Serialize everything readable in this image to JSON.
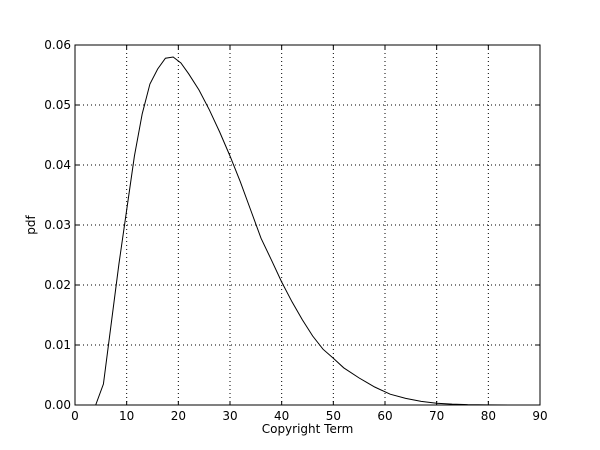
{
  "chart_data": {
    "type": "line",
    "title": "",
    "xlabel": "Copyright Term",
    "ylabel": "pdf",
    "xlim": [
      0,
      90
    ],
    "ylim": [
      0,
      0.06
    ],
    "grid": true,
    "xticks": [
      "0",
      "10",
      "20",
      "30",
      "40",
      "50",
      "60",
      "70",
      "80",
      "90"
    ],
    "yticks": [
      "0.00",
      "0.01",
      "0.02",
      "0.03",
      "0.04",
      "0.05",
      "0.06"
    ],
    "series": [
      {
        "color": "#000000",
        "x": [
          0,
          4,
          5.5,
          7,
          8.5,
          10,
          11.5,
          13,
          14.5,
          16,
          17.5,
          19,
          20.5,
          22,
          24,
          26,
          28,
          30,
          32,
          34,
          36,
          38,
          40,
          42,
          44,
          46,
          48,
          50,
          52,
          55,
          58,
          61,
          64,
          67,
          70,
          73,
          76,
          80,
          85,
          90
        ],
        "y": [
          0,
          0,
          0.0035,
          0.0135,
          0.0235,
          0.0325,
          0.0415,
          0.0485,
          0.0535,
          0.056,
          0.0578,
          0.058,
          0.057,
          0.0552,
          0.0525,
          0.0492,
          0.0455,
          0.0415,
          0.0372,
          0.0325,
          0.0278,
          0.0242,
          0.0205,
          0.0172,
          0.0142,
          0.0115,
          0.0093,
          0.0078,
          0.0062,
          0.0045,
          0.003,
          0.0018,
          0.0011,
          0.0006,
          0.0003,
          0.00015,
          6e-05,
          2e-05,
          0,
          0
        ]
      }
    ]
  }
}
